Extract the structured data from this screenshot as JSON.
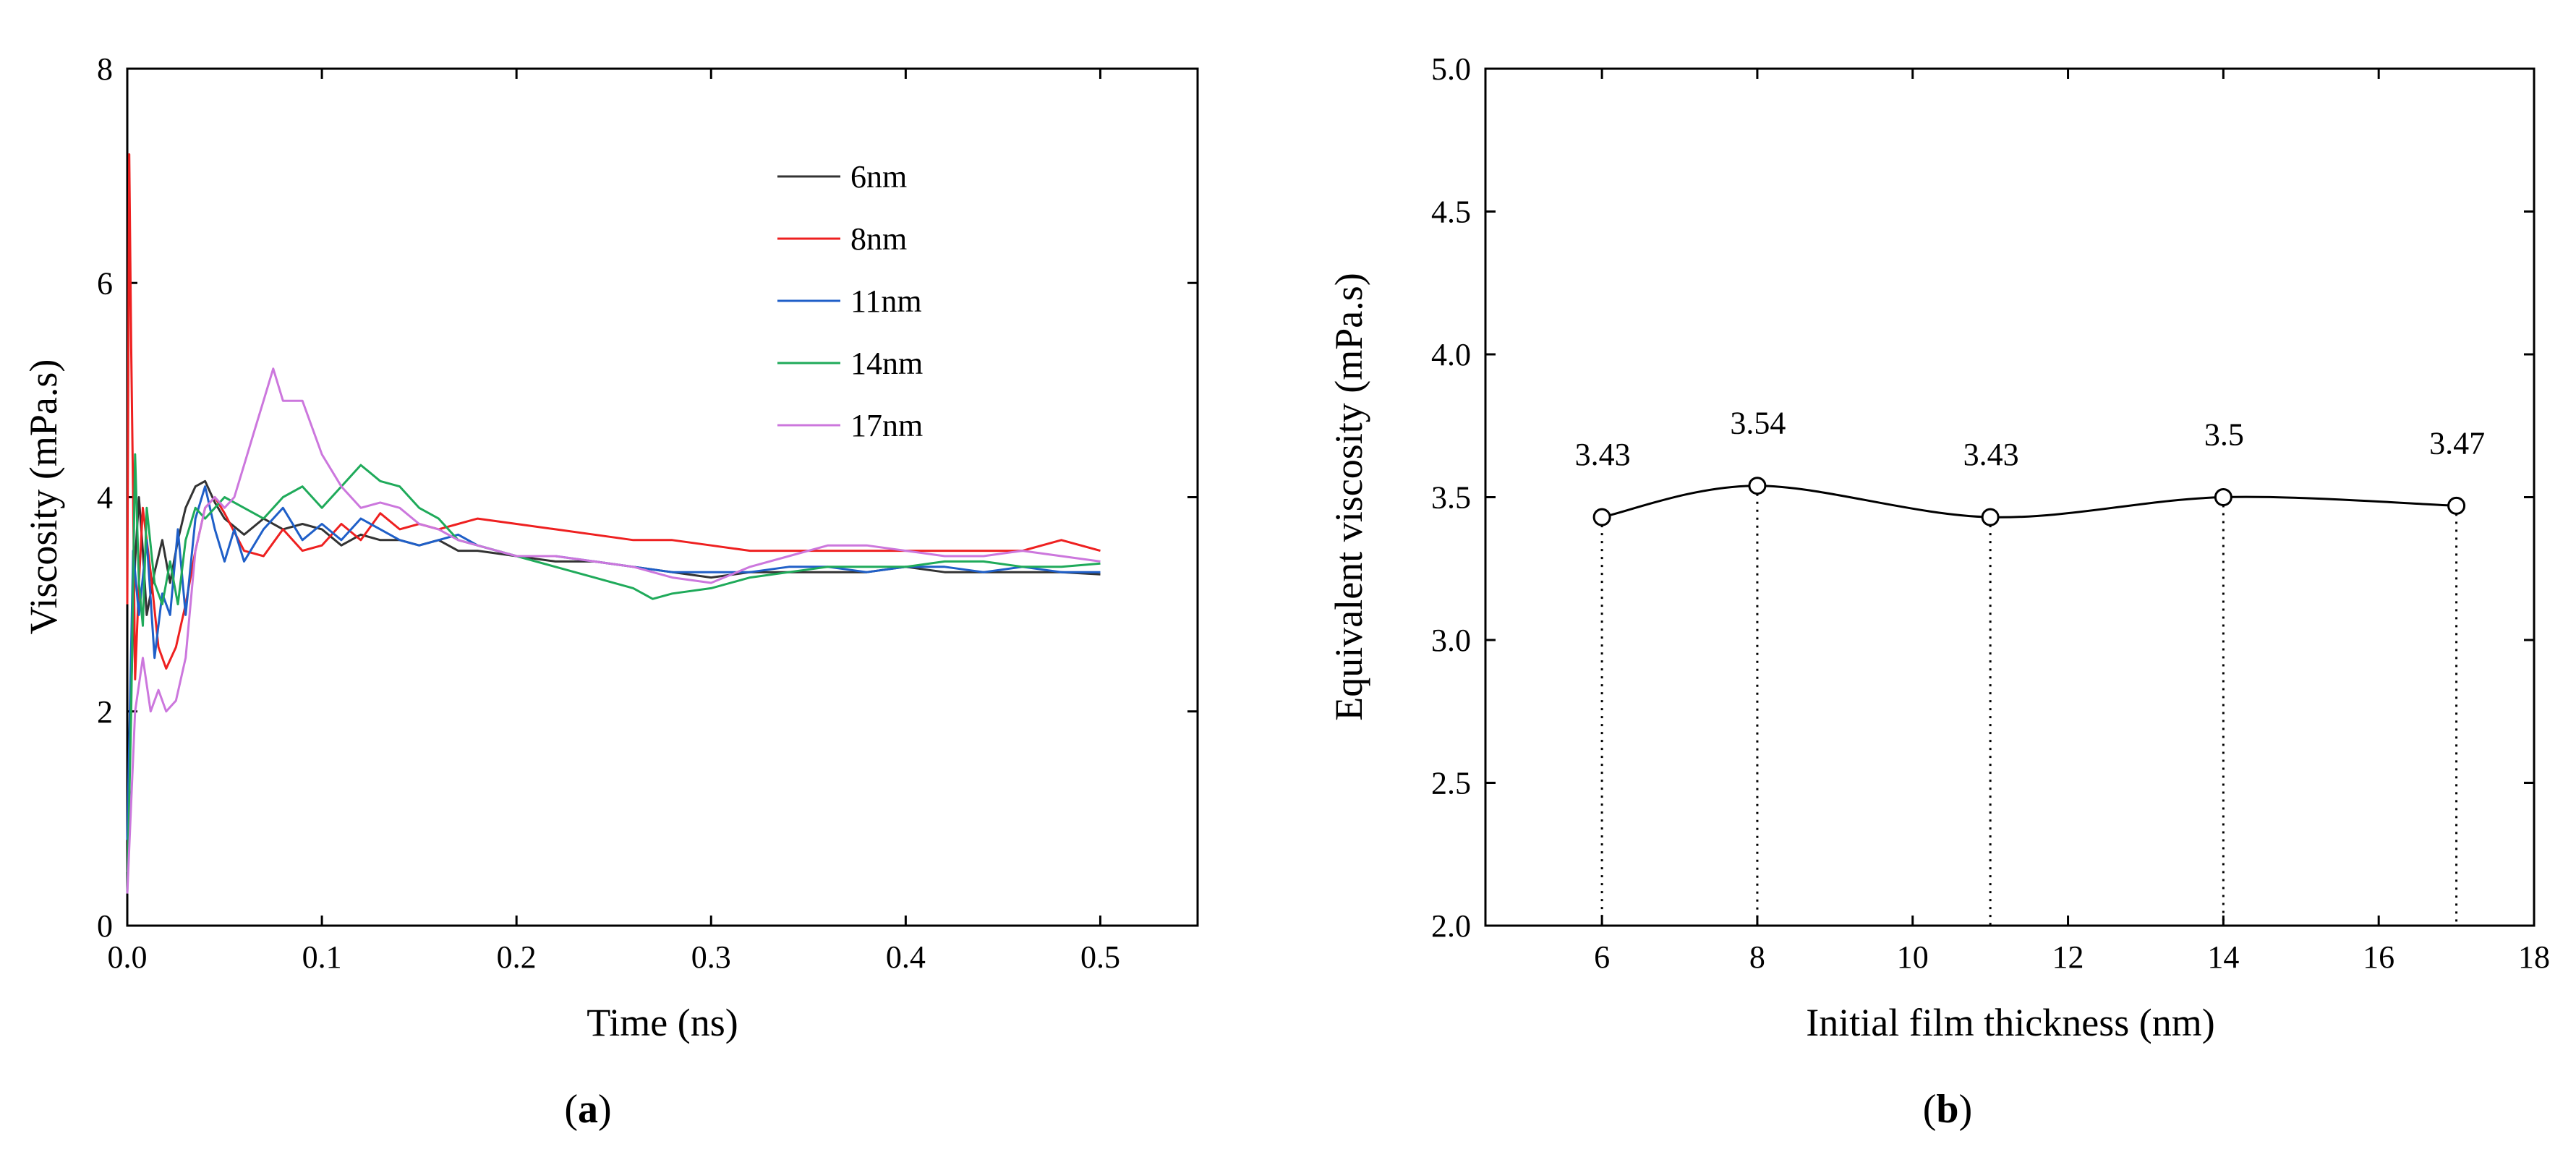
{
  "chart_data": [
    {
      "id": "a",
      "type": "line",
      "caption_label": "a",
      "xlabel": "Time (ns)",
      "ylabel": "Viscosity (mPa.s)",
      "xlim": [
        0.0,
        0.55
      ],
      "ylim": [
        0,
        8
      ],
      "xticks": [
        "0.0",
        "0.1",
        "0.2",
        "0.3",
        "0.4",
        "0.5"
      ],
      "xtick_values": [
        0.0,
        0.1,
        0.2,
        0.3,
        0.4,
        0.5
      ],
      "yticks": [
        "0",
        "2",
        "4",
        "6",
        "8"
      ],
      "ytick_values": [
        0,
        2,
        4,
        6,
        8
      ],
      "legend_position": "top-right",
      "series": [
        {
          "name": "6nm",
          "color": "#333333",
          "x": [
            0,
            0.002,
            0.004,
            0.006,
            0.008,
            0.01,
            0.014,
            0.018,
            0.022,
            0.026,
            0.03,
            0.035,
            0.04,
            0.045,
            0.05,
            0.06,
            0.07,
            0.08,
            0.09,
            0.1,
            0.11,
            0.12,
            0.13,
            0.14,
            0.15,
            0.16,
            0.17,
            0.18,
            0.2,
            0.22,
            0.24,
            0.26,
            0.28,
            0.3,
            0.32,
            0.34,
            0.36,
            0.38,
            0.4,
            0.42,
            0.44,
            0.46,
            0.48,
            0.5
          ],
          "y": [
            0.5,
            2.2,
            3.4,
            4.0,
            3.5,
            2.9,
            3.3,
            3.6,
            3.2,
            3.6,
            3.9,
            4.1,
            4.15,
            3.95,
            3.8,
            3.65,
            3.8,
            3.7,
            3.75,
            3.7,
            3.55,
            3.65,
            3.6,
            3.6,
            3.55,
            3.6,
            3.5,
            3.5,
            3.45,
            3.4,
            3.4,
            3.35,
            3.3,
            3.25,
            3.3,
            3.3,
            3.3,
            3.3,
            3.35,
            3.3,
            3.3,
            3.3,
            3.3,
            3.28
          ]
        },
        {
          "name": "8nm",
          "color": "#ee2020",
          "x": [
            0,
            0.001,
            0.002,
            0.003,
            0.004,
            0.006,
            0.008,
            0.012,
            0.016,
            0.02,
            0.025,
            0.03,
            0.035,
            0.04,
            0.045,
            0.05,
            0.06,
            0.07,
            0.08,
            0.09,
            0.1,
            0.11,
            0.12,
            0.13,
            0.14,
            0.15,
            0.16,
            0.17,
            0.18,
            0.2,
            0.22,
            0.24,
            0.26,
            0.28,
            0.3,
            0.32,
            0.34,
            0.36,
            0.38,
            0.4,
            0.42,
            0.44,
            0.46,
            0.48,
            0.5
          ],
          "y": [
            3.0,
            7.2,
            5.4,
            4.0,
            2.3,
            3.2,
            3.9,
            3.3,
            2.6,
            2.4,
            2.6,
            3.0,
            3.5,
            3.9,
            4.0,
            3.85,
            3.5,
            3.45,
            3.7,
            3.5,
            3.55,
            3.75,
            3.6,
            3.85,
            3.7,
            3.75,
            3.7,
            3.75,
            3.8,
            3.75,
            3.7,
            3.65,
            3.6,
            3.6,
            3.55,
            3.5,
            3.5,
            3.5,
            3.5,
            3.5,
            3.5,
            3.5,
            3.5,
            3.6,
            3.5
          ]
        },
        {
          "name": "11nm",
          "color": "#1f5fc8",
          "x": [
            0,
            0.003,
            0.006,
            0.01,
            0.014,
            0.018,
            0.022,
            0.026,
            0.03,
            0.035,
            0.04,
            0.045,
            0.05,
            0.055,
            0.06,
            0.07,
            0.08,
            0.09,
            0.1,
            0.11,
            0.12,
            0.13,
            0.14,
            0.15,
            0.16,
            0.17,
            0.18,
            0.2,
            0.22,
            0.24,
            0.26,
            0.28,
            0.3,
            0.32,
            0.34,
            0.36,
            0.38,
            0.4,
            0.42,
            0.44,
            0.46,
            0.48,
            0.5
          ],
          "y": [
            0.8,
            3.5,
            2.9,
            3.6,
            2.5,
            3.1,
            2.9,
            3.7,
            2.9,
            3.8,
            4.1,
            3.7,
            3.4,
            3.7,
            3.4,
            3.7,
            3.9,
            3.6,
            3.75,
            3.6,
            3.8,
            3.7,
            3.6,
            3.55,
            3.6,
            3.65,
            3.55,
            3.45,
            3.45,
            3.4,
            3.35,
            3.3,
            3.3,
            3.3,
            3.35,
            3.35,
            3.3,
            3.35,
            3.35,
            3.3,
            3.35,
            3.3,
            3.3
          ]
        },
        {
          "name": "14nm",
          "color": "#1faa5a",
          "x": [
            0,
            0.002,
            0.004,
            0.006,
            0.008,
            0.01,
            0.014,
            0.018,
            0.022,
            0.026,
            0.03,
            0.035,
            0.04,
            0.045,
            0.05,
            0.06,
            0.07,
            0.08,
            0.09,
            0.1,
            0.11,
            0.12,
            0.13,
            0.14,
            0.15,
            0.16,
            0.17,
            0.18,
            0.2,
            0.22,
            0.24,
            0.26,
            0.27,
            0.28,
            0.3,
            0.32,
            0.34,
            0.36,
            0.38,
            0.4,
            0.42,
            0.44,
            0.46,
            0.48,
            0.5
          ],
          "y": [
            0.3,
            2.0,
            4.4,
            3.2,
            2.8,
            3.9,
            3.2,
            3.0,
            3.4,
            3.0,
            3.6,
            3.9,
            3.8,
            3.9,
            4.0,
            3.9,
            3.8,
            4.0,
            4.1,
            3.9,
            4.1,
            4.3,
            4.15,
            4.1,
            3.9,
            3.8,
            3.6,
            3.55,
            3.45,
            3.35,
            3.25,
            3.15,
            3.05,
            3.1,
            3.15,
            3.25,
            3.3,
            3.35,
            3.35,
            3.35,
            3.4,
            3.4,
            3.35,
            3.35,
            3.38
          ]
        },
        {
          "name": "17nm",
          "color": "#cc77dd",
          "x": [
            0,
            0.004,
            0.008,
            0.012,
            0.016,
            0.02,
            0.025,
            0.03,
            0.035,
            0.04,
            0.045,
            0.05,
            0.055,
            0.06,
            0.065,
            0.07,
            0.075,
            0.08,
            0.09,
            0.1,
            0.11,
            0.12,
            0.13,
            0.14,
            0.15,
            0.16,
            0.17,
            0.18,
            0.2,
            0.22,
            0.24,
            0.26,
            0.28,
            0.3,
            0.32,
            0.34,
            0.36,
            0.38,
            0.4,
            0.42,
            0.44,
            0.46,
            0.48,
            0.5
          ],
          "y": [
            0.3,
            2.0,
            2.5,
            2.0,
            2.2,
            2.0,
            2.1,
            2.5,
            3.5,
            3.9,
            4.0,
            3.9,
            4.0,
            4.3,
            4.6,
            4.9,
            5.2,
            4.9,
            4.9,
            4.4,
            4.1,
            3.9,
            3.95,
            3.9,
            3.75,
            3.7,
            3.6,
            3.55,
            3.45,
            3.45,
            3.4,
            3.35,
            3.25,
            3.2,
            3.35,
            3.45,
            3.55,
            3.55,
            3.5,
            3.45,
            3.45,
            3.5,
            3.45,
            3.4
          ]
        }
      ]
    },
    {
      "id": "b",
      "type": "line",
      "caption_label": "b",
      "xlabel": "Initial film thickness (nm)",
      "ylabel": "Equivalent viscosity (mPa.s)",
      "xlim": [
        4.5,
        18
      ],
      "ylim": [
        2.0,
        5.0
      ],
      "xticks": [
        "6",
        "8",
        "10",
        "12",
        "14",
        "16",
        "18"
      ],
      "xtick_values": [
        6,
        8,
        10,
        12,
        14,
        16,
        18
      ],
      "yticks": [
        "2.0",
        "2.5",
        "3.0",
        "3.5",
        "4.0",
        "4.5",
        "5.0"
      ],
      "ytick_values": [
        2.0,
        2.5,
        3.0,
        3.5,
        4.0,
        4.5,
        5.0
      ],
      "x": [
        6,
        8,
        11,
        14,
        17
      ],
      "y": [
        3.43,
        3.54,
        3.43,
        3.5,
        3.47
      ],
      "labels": [
        "3.43",
        "3.54",
        "3.43",
        "3.5",
        "3.47"
      ],
      "line_color": "#000000",
      "marker": "open-circle",
      "drop_lines": "dotted"
    }
  ]
}
